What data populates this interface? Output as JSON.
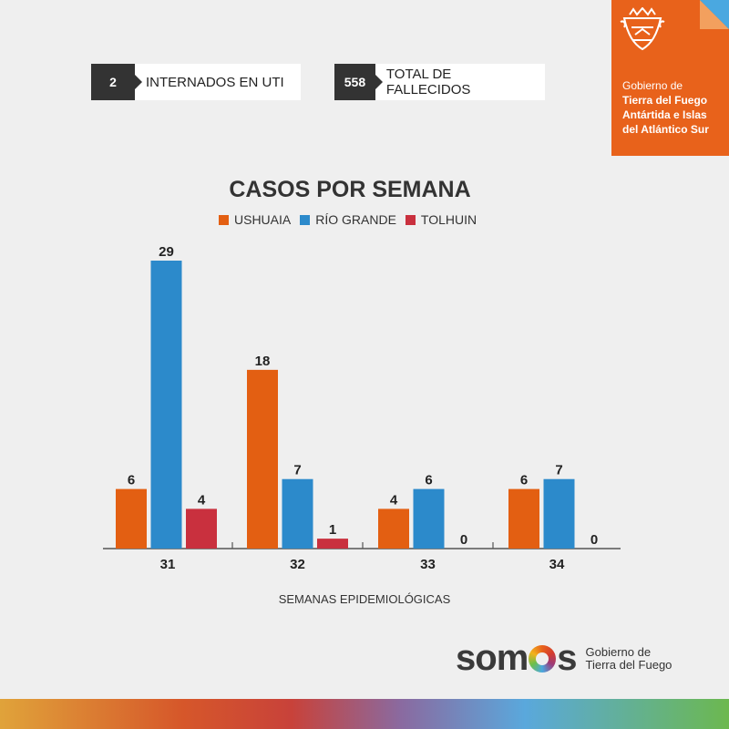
{
  "stats": [
    {
      "value": "2",
      "label": "INTERNADOS EN UTI"
    },
    {
      "value": "558",
      "label": "TOTAL DE FALLECIDOS"
    }
  ],
  "government": {
    "line1": "Gobierno de",
    "line2": "Tierra del Fuego",
    "line3": "Antártida e Islas",
    "line4": "del Atlántico Sur",
    "emblem_icon": "provincial-crest-icon"
  },
  "colors": {
    "ushuaia": "#e35f12",
    "rio_grande": "#2c8acb",
    "tolhuin": "#c9303e",
    "brand_orange": "#e8621b"
  },
  "chart_data": {
    "type": "bar",
    "title": "CASOS POR SEMANA",
    "xlabel": "SEMANAS EPIDEMIOLÓGICAS",
    "ylabel": "",
    "categories": [
      "31",
      "32",
      "33",
      "34"
    ],
    "series": [
      {
        "name": "USHUAIA",
        "color": "#e35f12",
        "values": [
          6,
          18,
          4,
          6
        ]
      },
      {
        "name": "RÍO GRANDE",
        "color": "#2c8acb",
        "values": [
          29,
          7,
          6,
          7
        ]
      },
      {
        "name": "TOLHUIN",
        "color": "#c9303e",
        "values": [
          4,
          1,
          0,
          0
        ]
      }
    ],
    "ylim": [
      0,
      29
    ],
    "legend": "top-center",
    "grid": false,
    "data_labels": true
  },
  "footer": {
    "brand": "somos",
    "tagline1": "Gobierno de",
    "tagline2": "Tierra del Fuego"
  }
}
